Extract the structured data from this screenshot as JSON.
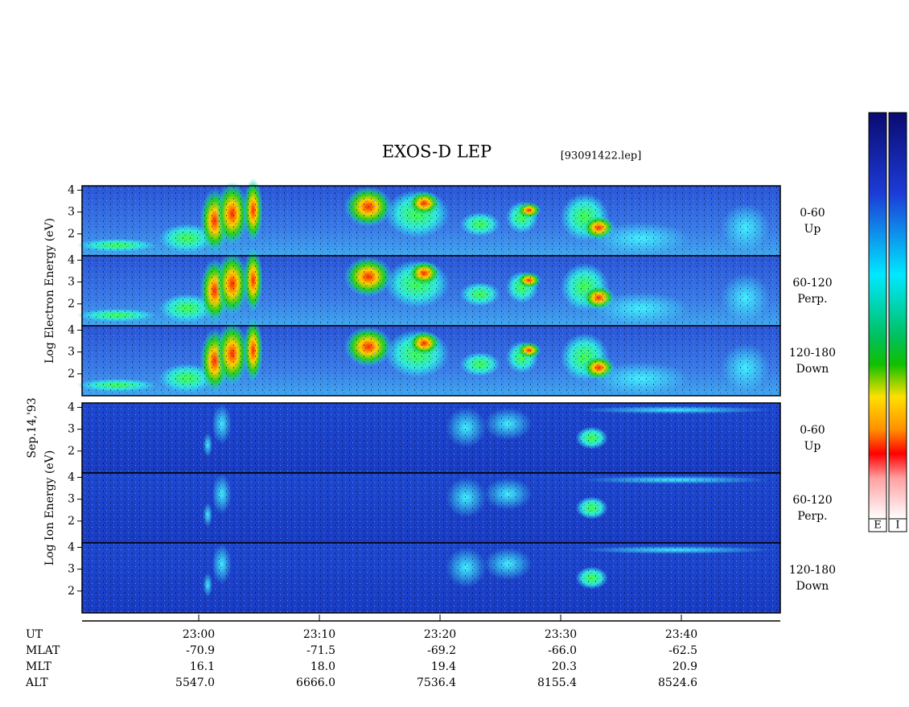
{
  "chart_data": {
    "type": "spectrogram",
    "title": "EXOS-D LEP",
    "file": "[93091422.lep]",
    "date_label": "Sep.14,'93",
    "groups": [
      {
        "y_label": "Log Electron Energy (eV)",
        "species": "electron",
        "panels": [
          {
            "angle": "0-60",
            "direction": "Up"
          },
          {
            "angle": "60-120",
            "direction": "Perp."
          },
          {
            "angle": "120-180",
            "direction": "Down"
          }
        ]
      },
      {
        "y_label": "Log Ion Energy (eV)",
        "species": "ion",
        "panels": [
          {
            "angle": "0-60",
            "direction": "Up"
          },
          {
            "angle": "60-120",
            "direction": "Perp."
          },
          {
            "angle": "120-180",
            "direction": "Down"
          }
        ]
      }
    ],
    "ylim": [
      1,
      4.2
    ],
    "yticks": [
      2,
      3,
      4
    ],
    "xlim": [
      1370.33,
      1428.2
    ],
    "xticks": [
      {
        "value": 1380,
        "label": "23:00"
      },
      {
        "value": 1390,
        "label": "23:10"
      },
      {
        "value": 1400,
        "label": "23:20"
      },
      {
        "value": 1410,
        "label": "23:30"
      },
      {
        "value": 1420,
        "label": "23:40"
      }
    ],
    "x_label": "UT",
    "ephemeris": [
      {
        "name": "MLAT",
        "values": [
          "-70.9",
          "-71.5",
          "-69.2",
          "-66.0",
          "-62.5"
        ]
      },
      {
        "name": "MLT",
        "values": [
          "16.1",
          "18.0",
          "19.4",
          "20.3",
          "20.9"
        ]
      },
      {
        "name": "ALT",
        "values": [
          "5547.0",
          "6666.0",
          "7536.4",
          "8155.4",
          "8524.6"
        ]
      }
    ],
    "colorbar_labels": [
      "E",
      "I"
    ]
  }
}
